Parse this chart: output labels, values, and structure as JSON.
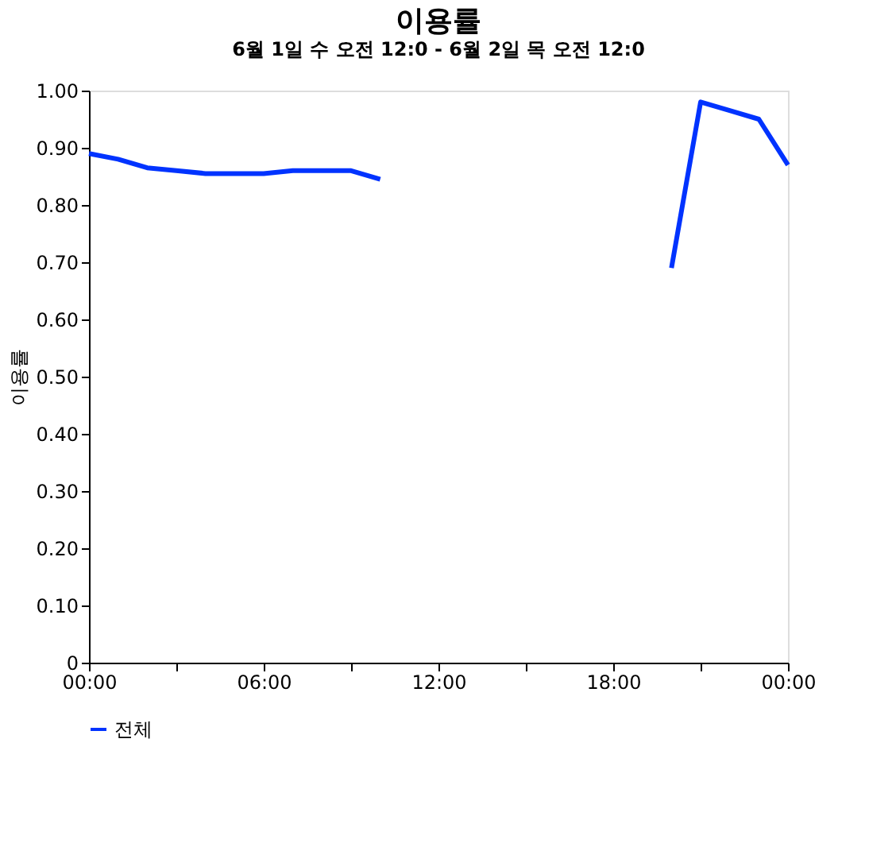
{
  "chart_data": {
    "type": "line",
    "title": "이용률",
    "subtitle": "6월 1일 수 오전 12:0 - 6월 2일 목 오전 12:0",
    "ylabel": "이용률",
    "x": [
      0,
      1,
      2,
      3,
      4,
      5,
      6,
      7,
      8,
      9,
      10,
      15,
      20,
      21,
      22,
      23,
      24
    ],
    "series": [
      {
        "name": "전체",
        "color": "#0033ff",
        "values": [
          0.89,
          0.88,
          0.865,
          0.86,
          0.855,
          0.855,
          0.855,
          0.86,
          0.86,
          0.86,
          0.845,
          null,
          0.69,
          0.98,
          0.965,
          0.95,
          0.87
        ]
      }
    ],
    "xlim": [
      0,
      24
    ],
    "xticks": [
      {
        "value": 0,
        "label": "00:00"
      },
      {
        "value": 3,
        "label": null
      },
      {
        "value": 6,
        "label": "06:00"
      },
      {
        "value": 9,
        "label": null
      },
      {
        "value": 12,
        "label": "12:00"
      },
      {
        "value": 15,
        "label": null
      },
      {
        "value": 18,
        "label": "18:00"
      },
      {
        "value": 21,
        "label": null
      },
      {
        "value": 24,
        "label": "00:00"
      }
    ],
    "ylim": [
      0,
      1
    ],
    "yticks": [
      0,
      {
        "value": 0.1,
        "label": "0.10"
      },
      {
        "value": 0.2,
        "label": "0.20"
      },
      {
        "value": 0.3,
        "label": "0.30"
      },
      {
        "value": 0.4,
        "label": "0.40"
      },
      {
        "value": 0.5,
        "label": "0.50"
      },
      {
        "value": 0.6,
        "label": "0.60"
      },
      {
        "value": 0.7,
        "label": "0.70"
      },
      {
        "value": 0.8,
        "label": "0.80"
      },
      {
        "value": 0.9,
        "label": "0.90"
      },
      {
        "value": 1,
        "label": "1.00"
      }
    ],
    "grid": false,
    "legend": "bottom",
    "marker": "none",
    "line_style": "solid"
  }
}
